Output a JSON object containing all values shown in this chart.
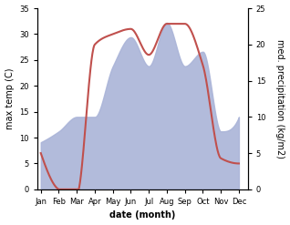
{
  "months": [
    "Jan",
    "Feb",
    "Mar",
    "Apr",
    "May",
    "Jun",
    "Jul",
    "Aug",
    "Sep",
    "Oct",
    "Nov",
    "Dec"
  ],
  "month_x": [
    1,
    2,
    3,
    4,
    5,
    6,
    7,
    8,
    9,
    10,
    11,
    12
  ],
  "temp": [
    7,
    0,
    -1,
    28,
    30,
    31,
    26,
    32,
    32,
    24,
    6,
    5
  ],
  "precip": [
    6.5,
    8,
    10,
    10,
    17,
    21,
    17,
    23,
    17,
    19,
    8,
    10
  ],
  "temp_color": "#c0504d",
  "precip_fill_color": "#aab4d8",
  "left_ylim": [
    0,
    35
  ],
  "right_ylim": [
    0,
    25
  ],
  "left_yticks": [
    0,
    5,
    10,
    15,
    20,
    25,
    30,
    35
  ],
  "right_yticks": [
    0,
    5,
    10,
    15,
    20,
    25
  ],
  "xlabel": "date (month)",
  "ylabel_left": "max temp (C)",
  "ylabel_right": "med. precipitation (kg/m2)",
  "bg_color": "#ffffff",
  "temp_linewidth": 1.5
}
